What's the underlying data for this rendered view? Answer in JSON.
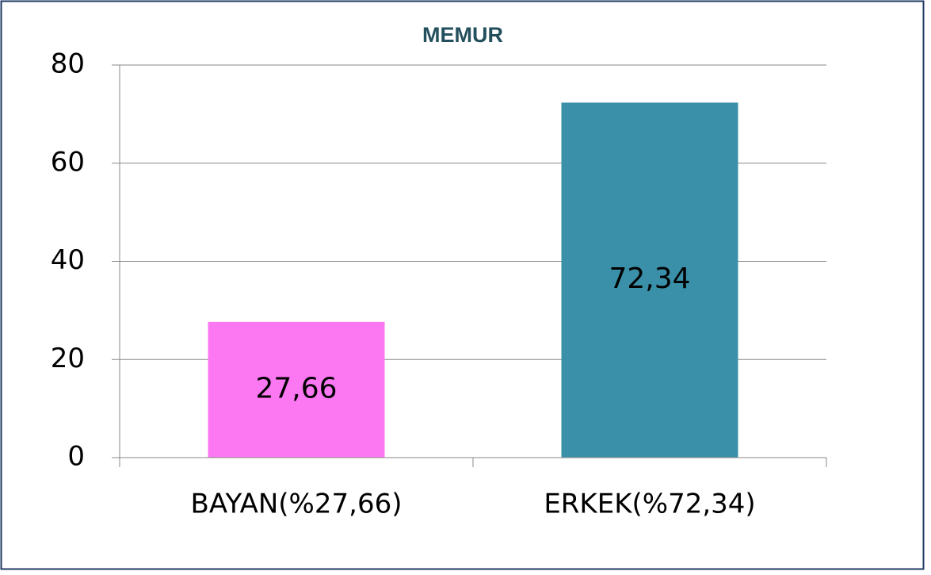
{
  "chart_data": {
    "type": "bar",
    "title": "MEMUR",
    "categories": [
      "BAYAN(%27,66)",
      "ERKEK(%72,34)"
    ],
    "values": [
      27.66,
      72.34
    ],
    "value_labels": [
      "27,66",
      "72,34"
    ],
    "colors": [
      "#fb78f2",
      "#3a90a8"
    ],
    "ylim": [
      0,
      80
    ],
    "yticks": [
      0,
      20,
      40,
      60,
      80
    ],
    "grid": true
  }
}
